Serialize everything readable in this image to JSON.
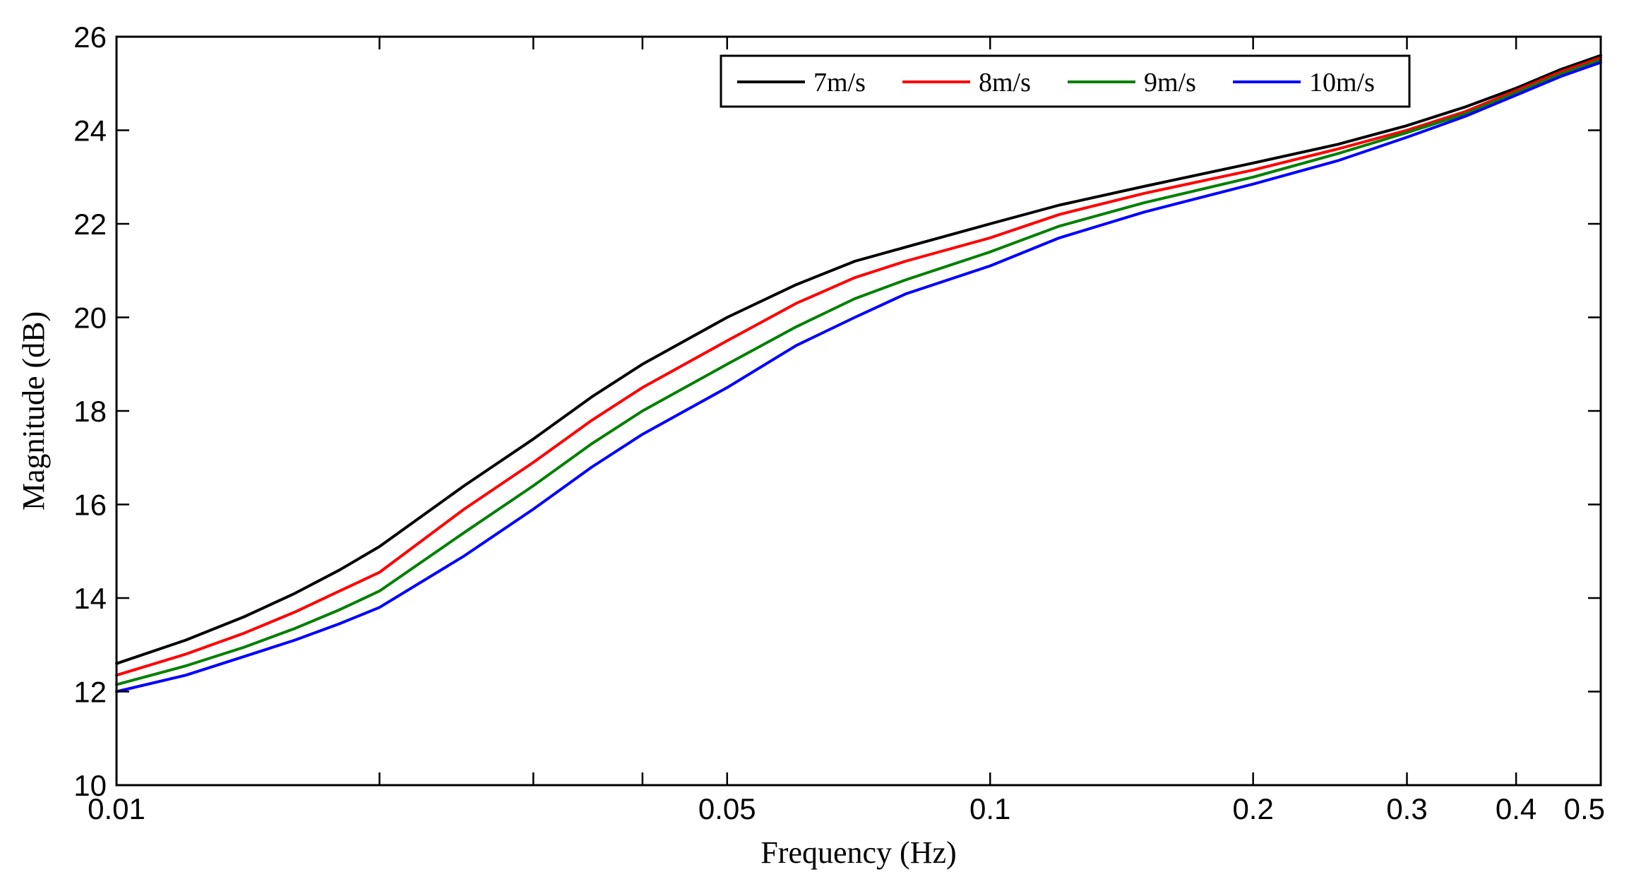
{
  "chart_data": {
    "type": "line",
    "title": "",
    "xlabel": "Frequency (Hz)",
    "ylabel": "Magnitude (dB)",
    "xscale": "log",
    "xlim": [
      0.01,
      0.5
    ],
    "ylim": [
      10,
      26
    ],
    "yticks": [
      10,
      12,
      14,
      16,
      18,
      20,
      22,
      24,
      26
    ],
    "xticks_labeled": [
      {
        "value": 0.01,
        "label": "0.01"
      },
      {
        "value": 0.05,
        "label": "0.05"
      },
      {
        "value": 0.1,
        "label": "0.1"
      },
      {
        "value": 0.2,
        "label": "0.2"
      },
      {
        "value": 0.3,
        "label": "0.3"
      },
      {
        "value": 0.4,
        "label": "0.4"
      },
      {
        "value": 0.5,
        "label": "0.5"
      }
    ],
    "xticks_minor": [
      0.02,
      0.03,
      0.04
    ],
    "grid": false,
    "legend_position": "top-right",
    "x": [
      0.01,
      0.012,
      0.014,
      0.016,
      0.018,
      0.02,
      0.025,
      0.03,
      0.035,
      0.04,
      0.05,
      0.06,
      0.07,
      0.08,
      0.1,
      0.12,
      0.15,
      0.2,
      0.25,
      0.3,
      0.35,
      0.4,
      0.45,
      0.5
    ],
    "series": [
      {
        "name": "7m/s",
        "color": "#000000",
        "values": [
          12.6,
          13.1,
          13.6,
          14.1,
          14.6,
          15.1,
          16.4,
          17.4,
          18.3,
          19.0,
          20.0,
          20.7,
          21.2,
          21.5,
          22.0,
          22.4,
          22.8,
          23.3,
          23.7,
          24.1,
          24.5,
          24.9,
          25.3,
          25.6
        ]
      },
      {
        "name": "8m/s",
        "color": "#ff0000",
        "values": [
          12.35,
          12.8,
          13.25,
          13.7,
          14.15,
          14.55,
          15.9,
          16.9,
          17.8,
          18.5,
          19.5,
          20.3,
          20.85,
          21.2,
          21.7,
          22.2,
          22.65,
          23.15,
          23.6,
          24.0,
          24.4,
          24.85,
          25.25,
          25.55
        ]
      },
      {
        "name": "9m/s",
        "color": "#008000",
        "values": [
          12.15,
          12.55,
          12.95,
          13.35,
          13.75,
          14.15,
          15.4,
          16.4,
          17.3,
          18.0,
          19.0,
          19.8,
          20.4,
          20.8,
          21.4,
          21.95,
          22.45,
          23.0,
          23.5,
          23.95,
          24.35,
          24.8,
          25.2,
          25.5
        ]
      },
      {
        "name": "10m/s",
        "color": "#0000ff",
        "values": [
          12.0,
          12.35,
          12.75,
          13.1,
          13.45,
          13.8,
          14.9,
          15.9,
          16.8,
          17.5,
          18.5,
          19.4,
          20.0,
          20.5,
          21.1,
          21.7,
          22.25,
          22.85,
          23.35,
          23.85,
          24.3,
          24.75,
          25.15,
          25.45
        ]
      }
    ]
  }
}
